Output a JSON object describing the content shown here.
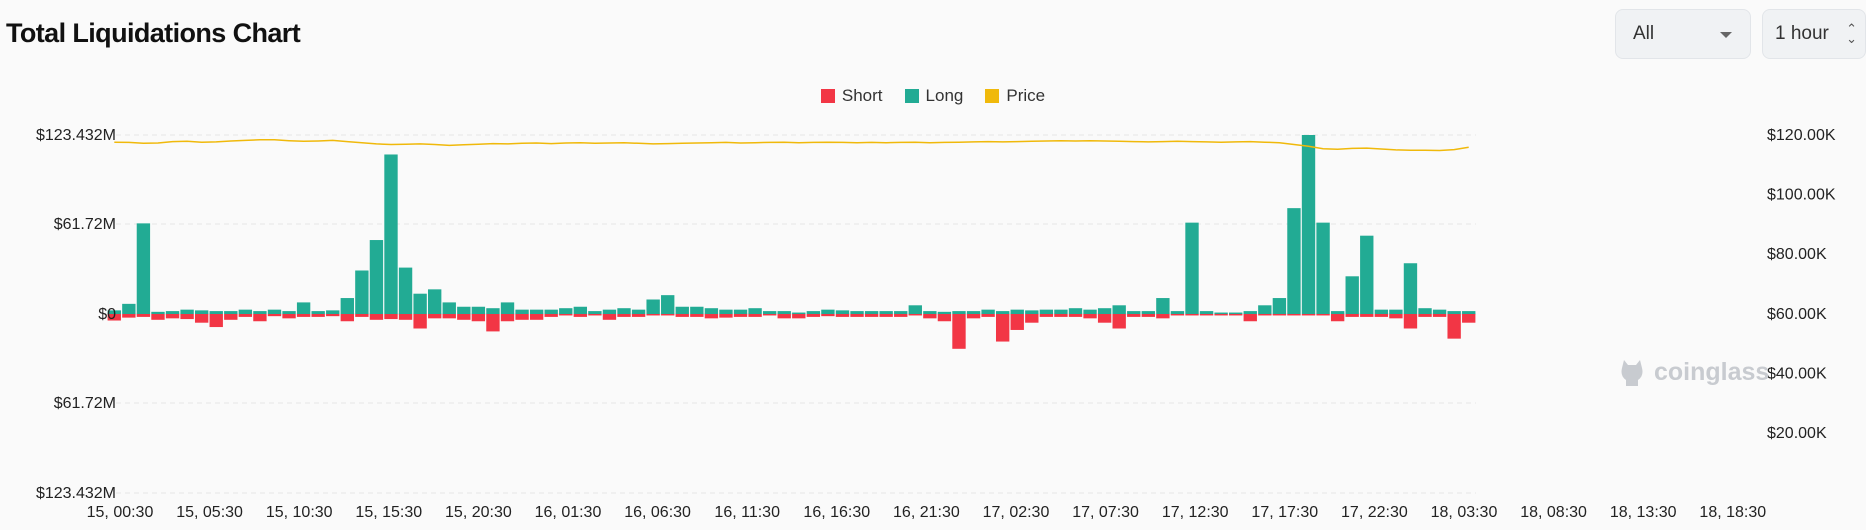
{
  "header": {
    "title": "Total Liquidations Chart"
  },
  "controls": {
    "filter_value": "All",
    "interval_value": "1 hour"
  },
  "colors": {
    "short": "#f23645",
    "long": "#22ab94",
    "price": "#f0b90b",
    "grid": "#e6e6e6"
  },
  "watermark": {
    "text": "coinglass"
  },
  "chart_data": {
    "type": "bar",
    "title": "Total Liquidations Chart",
    "legend": [
      "Short",
      "Long",
      "Price"
    ],
    "legend_position": "top-center",
    "grid": true,
    "y_left": {
      "ylim": [
        -123.432,
        123.432
      ],
      "unit": "M",
      "ticks": [
        "$123.432M",
        "$61.72M",
        "$0",
        "$61.72M",
        "$123.432M"
      ]
    },
    "y_right": {
      "ylim": [
        0,
        120
      ],
      "unit": "K",
      "ticks": [
        "$120.00K",
        "$100.00K",
        "$80.00K",
        "$60.00K",
        "$40.00K",
        "$20.00K"
      ]
    },
    "x_tick_labels": [
      "15, 00:30",
      "15, 05:30",
      "15, 10:30",
      "15, 15:30",
      "15, 20:30",
      "16, 01:30",
      "16, 06:30",
      "16, 11:30",
      "16, 16:30",
      "16, 21:30",
      "17, 02:30",
      "17, 07:30",
      "17, 12:30",
      "17, 17:30",
      "17, 22:30",
      "18, 03:30",
      "18, 08:30",
      "18, 13:30",
      "18, 18:30"
    ],
    "series": [
      {
        "name": "Long",
        "values": [
          2.5,
          7,
          62.5,
          1.5,
          2,
          3,
          2.5,
          2,
          2,
          3,
          2,
          3,
          2,
          8,
          2,
          2.5,
          11,
          30,
          51,
          110,
          32,
          14,
          17,
          8,
          5,
          5,
          4,
          8,
          3,
          3,
          3,
          4,
          5,
          2,
          3,
          4,
          3,
          10,
          13,
          5,
          5,
          4,
          3,
          3,
          4,
          2,
          2,
          1,
          2,
          3,
          2.5,
          2,
          2,
          2,
          2,
          6,
          2,
          1.5,
          2,
          2,
          3,
          2,
          3,
          2.5,
          3,
          3,
          4,
          3,
          4,
          6,
          2,
          2,
          11,
          2,
          63,
          2,
          1,
          1,
          2,
          6,
          11,
          73,
          123.432,
          63,
          2,
          26,
          54,
          3,
          3,
          35,
          4,
          3,
          2,
          2
        ]
      },
      {
        "name": "Short",
        "values": [
          4.5,
          2.5,
          2,
          4,
          3,
          3.5,
          6,
          9,
          4,
          2,
          5,
          1.5,
          3,
          2,
          2,
          1.5,
          5,
          2,
          4,
          3.5,
          4,
          10,
          3,
          3,
          4,
          5,
          12,
          5,
          4,
          4,
          2,
          1,
          2,
          1,
          4,
          2,
          2,
          1,
          1,
          2,
          2,
          3,
          2.5,
          2,
          2,
          1,
          3,
          3,
          2,
          1.5,
          2,
          2,
          2,
          2,
          2,
          1,
          3,
          5,
          24,
          3,
          2,
          19,
          11,
          6,
          2,
          2,
          2,
          3,
          6,
          10,
          2,
          2,
          3,
          1,
          1,
          1,
          1,
          1,
          5,
          1,
          1,
          1,
          1,
          1,
          5,
          2,
          2,
          2,
          3,
          10,
          2,
          2,
          17,
          6
        ]
      },
      {
        "name": "Price",
        "values": [
          117.6,
          117.5,
          117.2,
          117.3,
          117.8,
          117.9,
          117.6,
          117.7,
          118.0,
          118.2,
          118.4,
          118.4,
          118.1,
          117.9,
          118.0,
          118.2,
          117.8,
          117.4,
          117.0,
          116.8,
          116.9,
          117.0,
          116.8,
          116.5,
          116.7,
          116.9,
          117.1,
          117.0,
          117.2,
          117.3,
          117.1,
          117.3,
          117.4,
          117.2,
          117.3,
          117.4,
          117.2,
          117.0,
          117.1,
          117.2,
          117.3,
          117.4,
          117.5,
          117.3,
          117.4,
          117.5,
          117.6,
          117.4,
          117.5,
          117.6,
          117.5,
          117.4,
          117.5,
          117.4,
          117.5,
          117.6,
          117.4,
          117.5,
          117.6,
          117.7,
          117.8,
          117.7,
          117.8,
          117.9,
          118.0,
          118.1,
          118.0,
          118.1,
          118.0,
          117.9,
          117.8,
          117.7,
          117.8,
          117.9,
          117.8,
          117.7,
          117.6,
          117.7,
          117.8,
          117.6,
          117.4,
          116.8,
          116.2,
          115.4,
          115.2,
          115.5,
          115.6,
          115.3,
          115.0,
          114.9,
          114.9,
          114.8,
          115.1,
          115.9
        ]
      }
    ]
  }
}
